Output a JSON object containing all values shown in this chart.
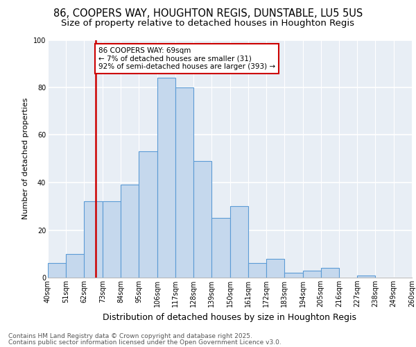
{
  "title1": "86, COOPERS WAY, HOUGHTON REGIS, DUNSTABLE, LU5 5US",
  "title2": "Size of property relative to detached houses in Houghton Regis",
  "xlabel": "Distribution of detached houses by size in Houghton Regis",
  "ylabel": "Number of detached properties",
  "bin_labels": [
    "40sqm",
    "51sqm",
    "62sqm",
    "73sqm",
    "84sqm",
    "95sqm",
    "106sqm",
    "117sqm",
    "128sqm",
    "139sqm",
    "150sqm",
    "161sqm",
    "172sqm",
    "183sqm",
    "194sqm",
    "205sqm",
    "216sqm",
    "227sqm",
    "238sqm",
    "249sqm",
    "260sqm"
  ],
  "categories": [
    40,
    51,
    62,
    73,
    84,
    95,
    106,
    117,
    128,
    139,
    150,
    161,
    172,
    183,
    194,
    205,
    216,
    227,
    238,
    249,
    260
  ],
  "bar_heights": [
    6,
    10,
    32,
    32,
    39,
    53,
    84,
    80,
    49,
    25,
    30,
    6,
    8,
    2,
    3,
    4,
    0,
    1,
    0,
    0
  ],
  "bar_color": "#c5d8ed",
  "bar_edge_color": "#5b9bd5",
  "plot_bg_color": "#e8eef5",
  "vline_x": 69,
  "annotation_text": "86 COOPERS WAY: 69sqm\n← 7% of detached houses are smaller (31)\n92% of semi-detached houses are larger (393) →",
  "annotation_box_facecolor": "#ffffff",
  "annotation_border_color": "#cc0000",
  "ylim": [
    0,
    100
  ],
  "yticks": [
    0,
    20,
    40,
    60,
    80,
    100
  ],
  "footer1": "Contains HM Land Registry data © Crown copyright and database right 2025.",
  "footer2": "Contains public sector information licensed under the Open Government Licence v3.0.",
  "title_fontsize": 10.5,
  "subtitle_fontsize": 9.5,
  "axis_label_fontsize": 8,
  "tick_fontsize": 7,
  "footer_fontsize": 6.5
}
